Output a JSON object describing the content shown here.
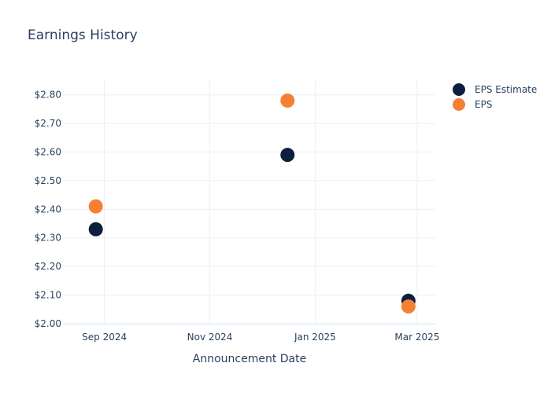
{
  "chart_data": {
    "type": "scatter",
    "title": "Earnings History",
    "xlabel": "Announcement Date",
    "ylabel": "",
    "x_ticks": [
      "Sep 2024",
      "Nov 2024",
      "Jan 2025",
      "Mar 2025"
    ],
    "y_ticks": [
      "$2.00",
      "$2.10",
      "$2.20",
      "$2.30",
      "$2.40",
      "$2.50",
      "$2.60",
      "$2.70",
      "$2.80"
    ],
    "ylim": [
      1.997,
      2.857
    ],
    "xlim": [
      "2024-08-08",
      "2025-03-12"
    ],
    "grid": true,
    "legend_position": "top-right",
    "series": [
      {
        "name": "EPS Estimate",
        "color": "#0d1f3f",
        "points": [
          {
            "x": "2024-08-27",
            "y": 2.33
          },
          {
            "x": "2024-12-16",
            "y": 2.59
          },
          {
            "x": "2025-02-24",
            "y": 2.08
          }
        ]
      },
      {
        "name": "EPS",
        "color": "#f57f32",
        "points": [
          {
            "x": "2024-08-27",
            "y": 2.41
          },
          {
            "x": "2024-12-16",
            "y": 2.78
          },
          {
            "x": "2025-02-24",
            "y": 2.06
          }
        ]
      }
    ]
  }
}
